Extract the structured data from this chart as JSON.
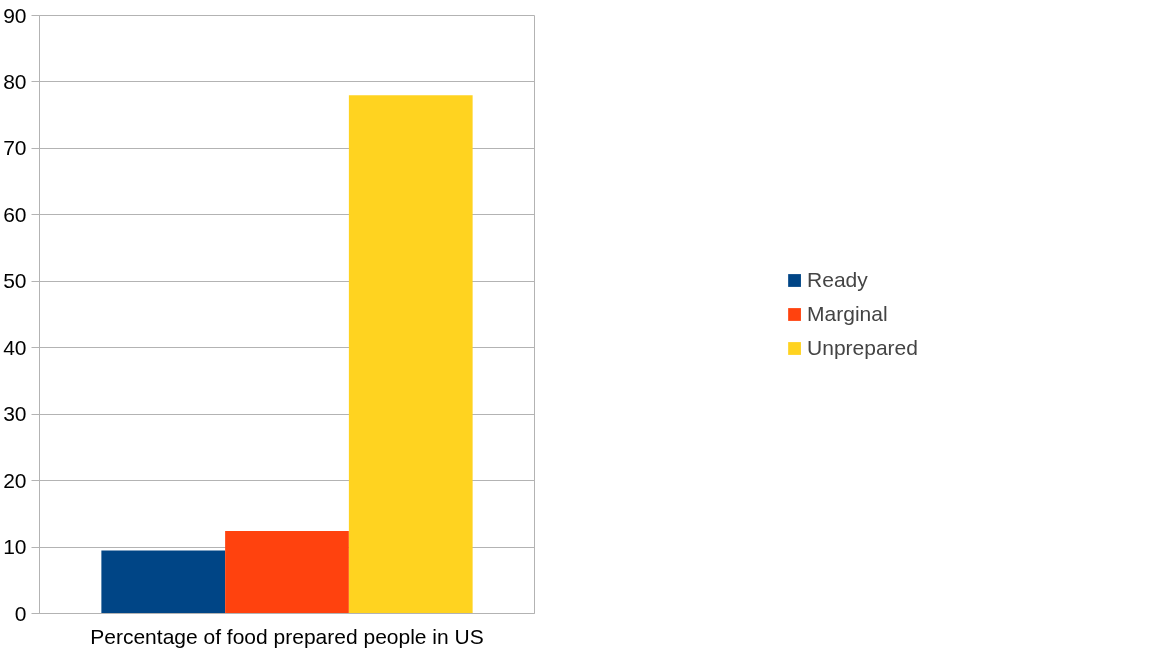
{
  "chart_data": {
    "type": "bar",
    "categories": [
      "Percentage of food prepared people in US"
    ],
    "series": [
      {
        "name": "Ready",
        "color": "#004586",
        "values": [
          9.5
        ]
      },
      {
        "name": "Marginal",
        "color": "#ff420e",
        "values": [
          12.4
        ]
      },
      {
        "name": "Unprepared",
        "color": "#ffd320",
        "values": [
          78
        ]
      }
    ],
    "ylim": [
      0,
      90
    ],
    "yticks": [
      0,
      10,
      20,
      30,
      40,
      50,
      60,
      70,
      80,
      90
    ],
    "grid": "y",
    "legend": "right"
  }
}
